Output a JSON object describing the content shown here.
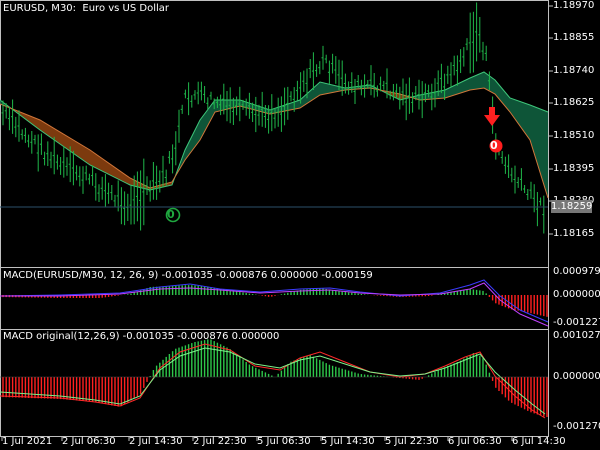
{
  "main": {
    "title": "EURUSD, M30:  Euro vs US Dollar",
    "price_labels": [
      "1.18970",
      "1.18855",
      "1.18740",
      "1.18625",
      "1.18510",
      "1.18395",
      "1.18280",
      "1.18165"
    ],
    "current_price": "1.18259",
    "signal_buy_label": "0",
    "signal_sell_label": "0",
    "colors": {
      "bull_cloud": "#0f5e3e",
      "bear_cloud": "#8a4010",
      "bars": "#1fb84a",
      "buy": "#1fa83f",
      "sell": "#ff1e1e"
    }
  },
  "macd_panel": {
    "title": "MACD(EURUSD/M30, 12, 26, 9) -0.001035 -0.000876 0.000000 -0.000159",
    "scale_labels": [
      "0.000979",
      "0.000000",
      "-0.001227"
    ]
  },
  "macd_original_panel": {
    "title": "MACD original(12,26,9) -0.001035 -0.000876 0.000000",
    "scale_labels": [
      "0.001027",
      "0.000000",
      "-0.001270"
    ]
  },
  "time_axis": {
    "labels": [
      "1 Jul 2021",
      "2 Jul 06:30",
      "2 Jul 14:30",
      "2 Jul 22:30",
      "5 Jul 06:30",
      "5 Jul 14:30",
      "5 Jul 22:30",
      "6 Jul 06:30",
      "6 Jul 14:30"
    ]
  },
  "icons": {
    "sell_arrow": "down-arrow-icon",
    "buy_signal": "circled-zero-icon",
    "sell_signal": "circled-zero-icon"
  }
}
